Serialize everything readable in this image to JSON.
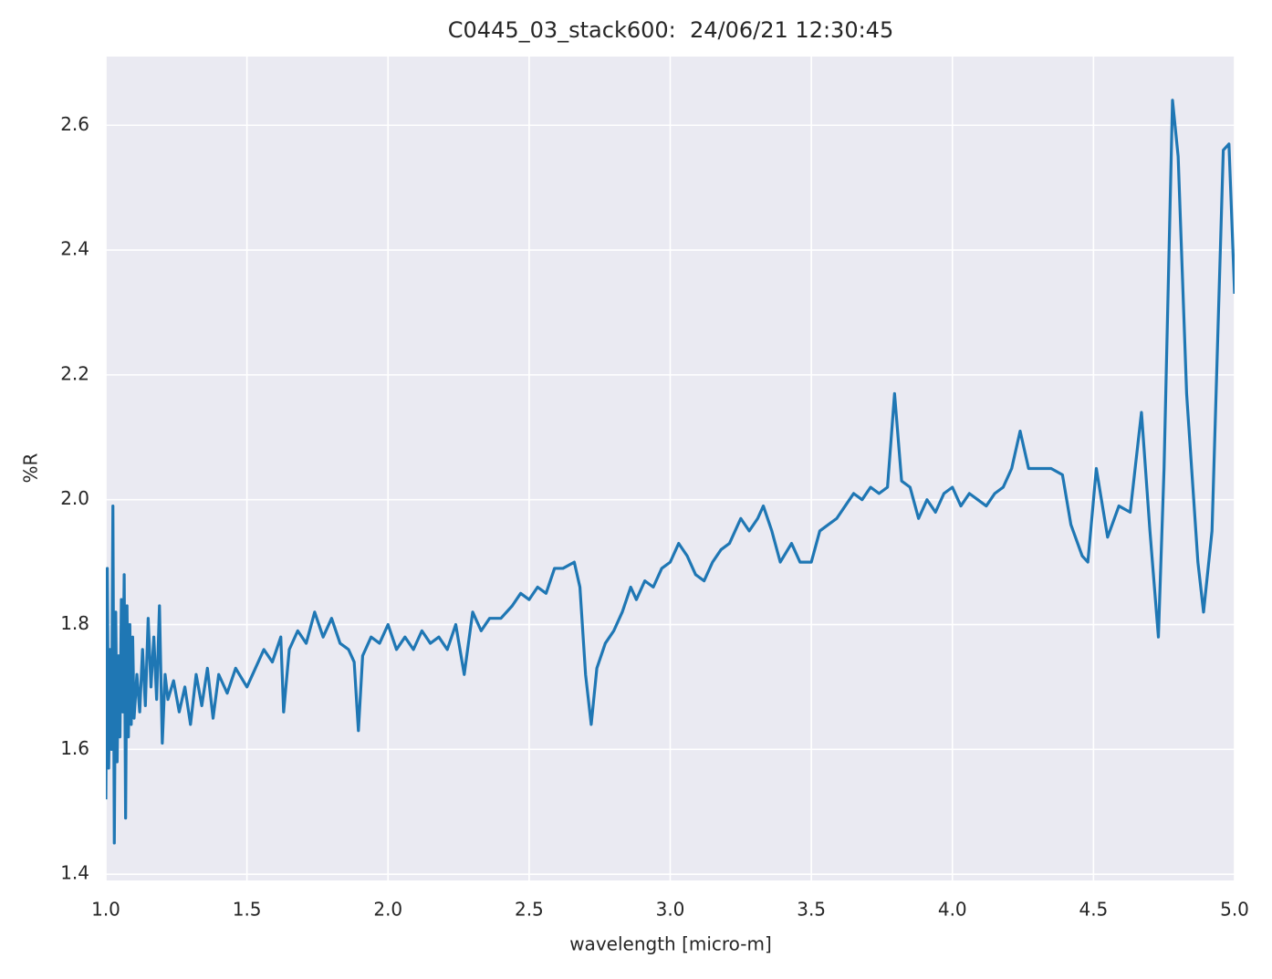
{
  "chart_data": {
    "type": "line",
    "title": "C0445_03_stack600:  24/06/21 12:30:45",
    "x_label": "wavelength [micro-m]",
    "y_label": "%R",
    "color": "#1f77b4",
    "grid": true,
    "xlim": [
      1,
      5
    ],
    "ylim": [
      1.39,
      2.71
    ],
    "xticks": [
      {
        "value": 1,
        "label": "1.0"
      },
      1.5,
      {
        "value": 2,
        "label": "2.0"
      },
      2.5,
      {
        "value": 3,
        "label": "3.0"
      },
      3.5,
      {
        "value": 4,
        "label": "4.0"
      },
      4.5,
      {
        "value": 5,
        "label": "5.0"
      }
    ],
    "yticks": [
      1.4,
      1.6,
      1.8,
      {
        "value": 2,
        "label": "2.0"
      },
      2.2,
      2.4,
      2.6
    ],
    "x": [
      1.0,
      1.005,
      1.01,
      1.015,
      1.02,
      1.025,
      1.03,
      1.035,
      1.04,
      1.045,
      1.05,
      1.055,
      1.06,
      1.065,
      1.07,
      1.075,
      1.08,
      1.085,
      1.09,
      1.095,
      1.1,
      1.11,
      1.12,
      1.13,
      1.14,
      1.15,
      1.16,
      1.17,
      1.18,
      1.19,
      1.2,
      1.21,
      1.22,
      1.24,
      1.26,
      1.28,
      1.3,
      1.32,
      1.34,
      1.36,
      1.38,
      1.4,
      1.43,
      1.46,
      1.5,
      1.53,
      1.56,
      1.59,
      1.62,
      1.63,
      1.65,
      1.68,
      1.71,
      1.74,
      1.77,
      1.8,
      1.83,
      1.86,
      1.88,
      1.895,
      1.91,
      1.94,
      1.97,
      2.0,
      2.03,
      2.06,
      2.09,
      2.12,
      2.15,
      2.18,
      2.21,
      2.24,
      2.27,
      2.3,
      2.33,
      2.36,
      2.4,
      2.44,
      2.47,
      2.5,
      2.53,
      2.56,
      2.59,
      2.62,
      2.66,
      2.68,
      2.7,
      2.72,
      2.74,
      2.77,
      2.8,
      2.83,
      2.86,
      2.88,
      2.91,
      2.94,
      2.97,
      3.0,
      3.03,
      3.06,
      3.09,
      3.12,
      3.15,
      3.18,
      3.21,
      3.25,
      3.28,
      3.31,
      3.33,
      3.36,
      3.39,
      3.43,
      3.46,
      3.5,
      3.53,
      3.56,
      3.59,
      3.62,
      3.65,
      3.68,
      3.71,
      3.74,
      3.77,
      3.795,
      3.82,
      3.85,
      3.88,
      3.91,
      3.94,
      3.97,
      4.0,
      4.03,
      4.06,
      4.09,
      4.12,
      4.15,
      4.18,
      4.21,
      4.24,
      4.27,
      4.3,
      4.35,
      4.39,
      4.42,
      4.46,
      4.48,
      4.51,
      4.55,
      4.59,
      4.63,
      4.67,
      4.7,
      4.73,
      4.75,
      4.78,
      4.8,
      4.83,
      4.87,
      4.89,
      4.92,
      4.96,
      4.98,
      5.0
    ],
    "values": [
      1.52,
      1.89,
      1.57,
      1.76,
      1.6,
      1.99,
      1.45,
      1.82,
      1.58,
      1.75,
      1.62,
      1.84,
      1.66,
      1.88,
      1.49,
      1.83,
      1.62,
      1.8,
      1.64,
      1.78,
      1.65,
      1.72,
      1.66,
      1.76,
      1.67,
      1.81,
      1.7,
      1.78,
      1.68,
      1.83,
      1.61,
      1.72,
      1.68,
      1.71,
      1.66,
      1.7,
      1.64,
      1.72,
      1.67,
      1.73,
      1.65,
      1.72,
      1.69,
      1.73,
      1.7,
      1.73,
      1.76,
      1.74,
      1.78,
      1.66,
      1.76,
      1.79,
      1.77,
      1.82,
      1.78,
      1.81,
      1.77,
      1.76,
      1.74,
      1.63,
      1.75,
      1.78,
      1.77,
      1.8,
      1.76,
      1.78,
      1.76,
      1.79,
      1.77,
      1.78,
      1.76,
      1.8,
      1.72,
      1.82,
      1.79,
      1.81,
      1.81,
      1.83,
      1.85,
      1.84,
      1.86,
      1.85,
      1.89,
      1.89,
      1.9,
      1.86,
      1.72,
      1.64,
      1.73,
      1.77,
      1.79,
      1.82,
      1.86,
      1.84,
      1.87,
      1.86,
      1.89,
      1.9,
      1.93,
      1.91,
      1.88,
      1.87,
      1.9,
      1.92,
      1.93,
      1.97,
      1.95,
      1.97,
      1.99,
      1.95,
      1.9,
      1.93,
      1.9,
      1.9,
      1.95,
      1.96,
      1.97,
      1.99,
      2.01,
      2.0,
      2.02,
      2.01,
      2.02,
      2.17,
      2.03,
      2.02,
      1.97,
      2.0,
      1.98,
      2.01,
      2.02,
      1.99,
      2.01,
      2.0,
      1.99,
      2.01,
      2.02,
      2.05,
      2.11,
      2.05,
      2.05,
      2.05,
      2.04,
      1.96,
      1.91,
      1.9,
      2.05,
      1.94,
      1.99,
      1.98,
      2.14,
      1.95,
      1.78,
      2.05,
      2.64,
      2.55,
      2.17,
      1.9,
      1.82,
      1.95,
      2.56,
      2.57,
      2.33
    ]
  }
}
